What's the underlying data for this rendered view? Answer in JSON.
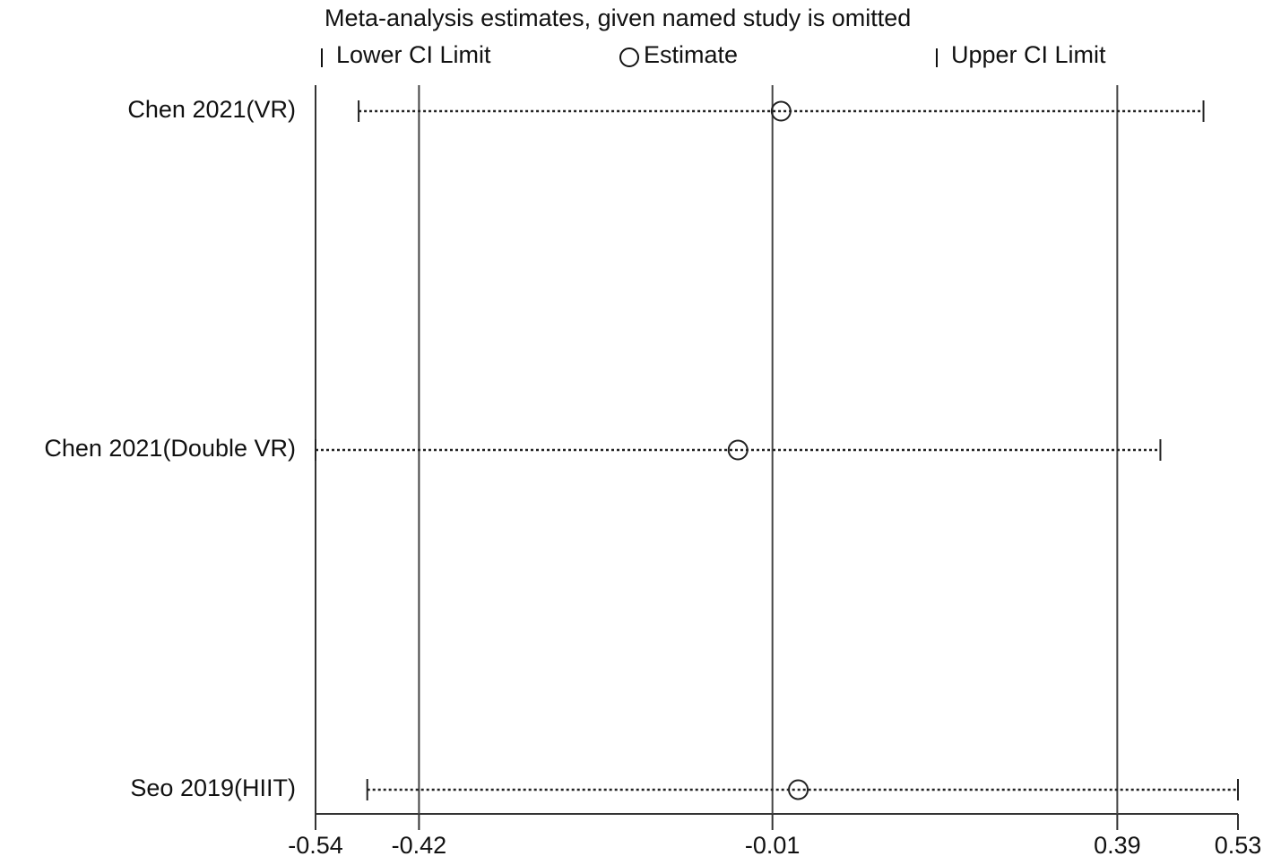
{
  "chart_data": {
    "type": "interval",
    "title": "Meta-analysis estimates, given named study is omitted",
    "categories": [
      "Chen 2021(VR)",
      "Chen 2021(Double VR)",
      "Seo 2019(HIIT)"
    ],
    "series": [
      {
        "name": "Lower CI Limit",
        "values": [
          -0.49,
          -0.54,
          -0.48
        ]
      },
      {
        "name": "Estimate",
        "values": [
          0.0,
          -0.05,
          0.02
        ]
      },
      {
        "name": "Upper CI Limit",
        "values": [
          0.49,
          0.44,
          0.53
        ]
      }
    ],
    "reference_lines": [
      -0.42,
      -0.01,
      0.39
    ],
    "xlim": [
      -0.54,
      0.53
    ],
    "xticks": [
      -0.54,
      -0.42,
      -0.01,
      0.39,
      0.53
    ]
  }
}
